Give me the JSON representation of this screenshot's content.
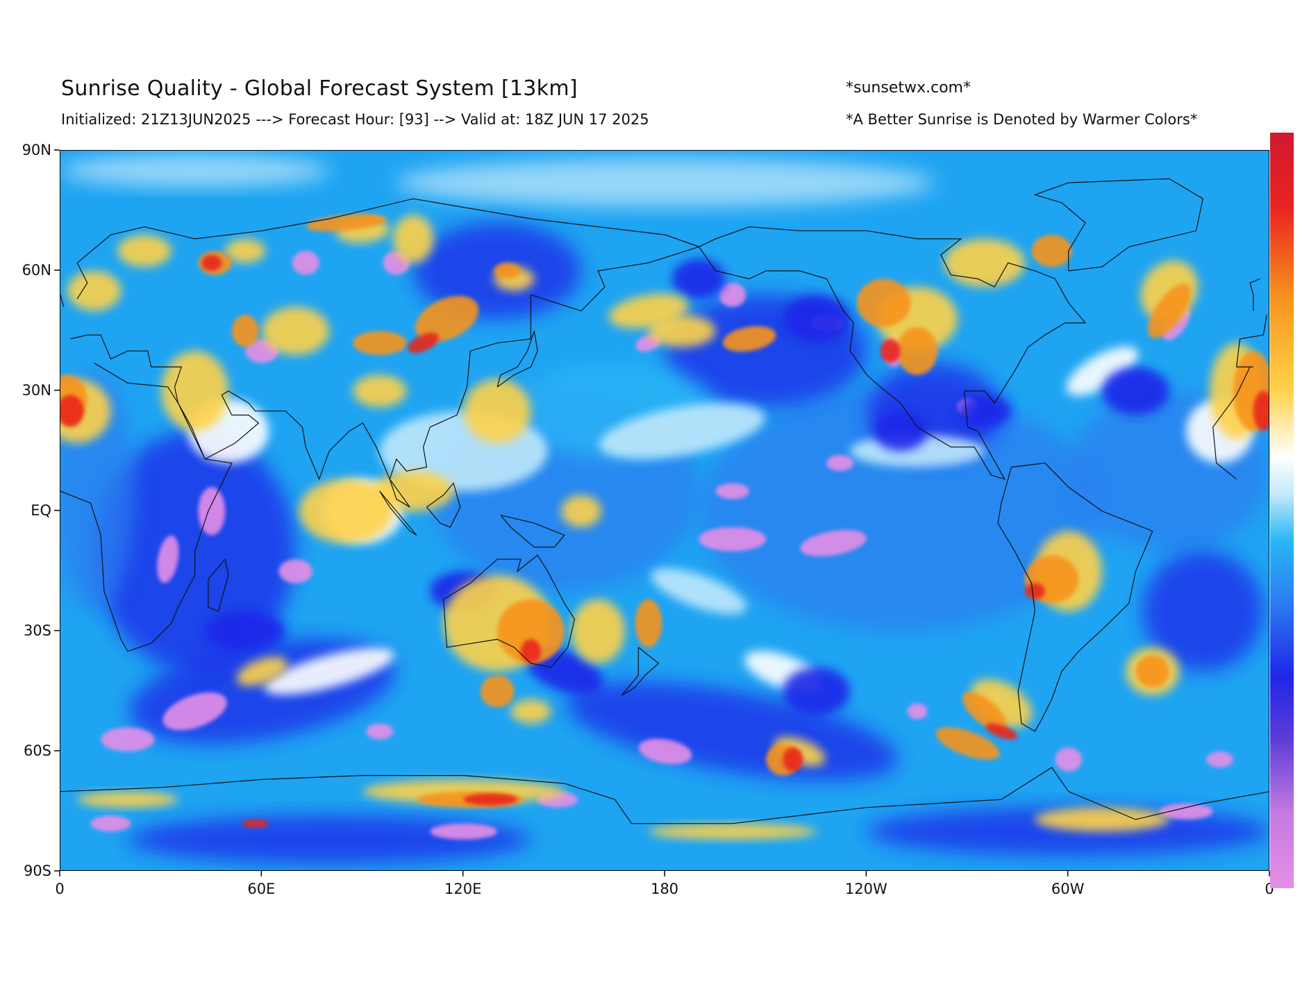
{
  "header": {
    "title": "Sunrise Quality - Global Forecast System [13km]",
    "subtitle": "Initialized: 21Z13JUN2025 ---> Forecast Hour: [93] --> Valid at: 18Z JUN 17 2025",
    "site": "*sunsetwx.com*",
    "tagline": "*A Better Sunrise is Denoted by Warmer Colors*"
  },
  "map": {
    "projection": "equirectangular",
    "lat_range": [
      -90,
      90
    ],
    "lon_range": [
      0,
      360
    ],
    "y_ticks": [
      "90N",
      "60N",
      "30N",
      "EQ",
      "30S",
      "60S",
      "90S"
    ],
    "x_ticks": [
      "0",
      "60E",
      "120E",
      "180",
      "120W",
      "60W",
      "0"
    ],
    "field": "sunrise quality",
    "palette": {
      "violet": "#e58fe6",
      "blue_purple": "#5a3bd8",
      "deep_blue": "#1f26e8",
      "blue": "#2a7ff0",
      "light_blue": "#29b6f6",
      "pale_blue": "#bfe8fb",
      "white": "#ffffff",
      "yellow": "#ffd24a",
      "orange": "#f7941d",
      "red": "#e8251f",
      "crimson": "#d01830"
    }
  },
  "colorbar": {
    "orientation": "vertical",
    "low_color": "#e58fe6",
    "high_color": "#d01830",
    "meaning": "warmer colors = better sunrise"
  }
}
